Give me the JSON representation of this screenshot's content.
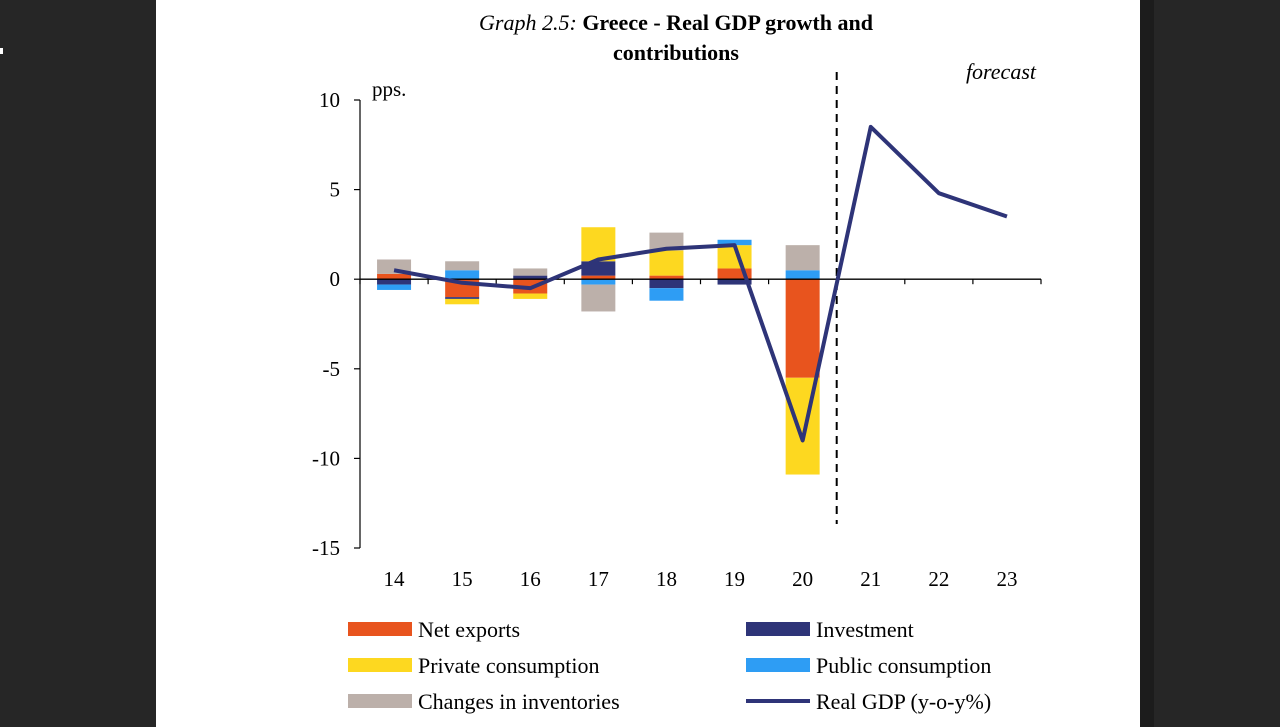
{
  "chart_data": {
    "type": "bar",
    "title_prefix": "Graph 2.5:",
    "title": "Greece - Real GDP growth and contributions",
    "ylabel": "pps.",
    "forecast_label": "forecast",
    "categories": [
      "14",
      "15",
      "16",
      "17",
      "18",
      "19",
      "20",
      "21",
      "22",
      "23"
    ],
    "yticks": [
      10,
      5,
      0,
      -5,
      -10,
      -15
    ],
    "ylim": [
      -15,
      10
    ],
    "stacked": true,
    "forecast_start_after": "20",
    "series": [
      {
        "name": "Net exports",
        "color": "#E8541E",
        "kind": "bar",
        "values": [
          0.3,
          -1.0,
          -0.8,
          0.2,
          0.2,
          0.6,
          -5.5,
          null,
          null,
          null
        ]
      },
      {
        "name": "Investment",
        "color": "#2E3478",
        "kind": "bar",
        "values": [
          -0.3,
          -0.1,
          0.2,
          0.8,
          -0.5,
          -0.3,
          0.0,
          null,
          null,
          null
        ]
      },
      {
        "name": "Private consumption",
        "color": "#FDD820",
        "kind": "bar",
        "values": [
          0.0,
          -0.3,
          -0.3,
          1.9,
          1.4,
          1.3,
          -5.4,
          null,
          null,
          null
        ]
      },
      {
        "name": "Public consumption",
        "color": "#2E9DF4",
        "kind": "bar",
        "values": [
          -0.3,
          0.5,
          0.0,
          -0.3,
          -0.7,
          0.3,
          0.5,
          null,
          null,
          null
        ]
      },
      {
        "name": "Changes in inventories",
        "color": "#BCB0AA",
        "kind": "bar",
        "values": [
          0.8,
          0.5,
          0.4,
          -1.5,
          1.0,
          0.0,
          1.4,
          null,
          null,
          null
        ]
      },
      {
        "name": "Real GDP (y-o-y%)",
        "color": "#2E3478",
        "kind": "line",
        "values": [
          0.5,
          -0.2,
          -0.5,
          1.1,
          1.7,
          1.9,
          -9.0,
          8.5,
          4.8,
          3.5
        ]
      }
    ],
    "legend_position": "bottom"
  }
}
